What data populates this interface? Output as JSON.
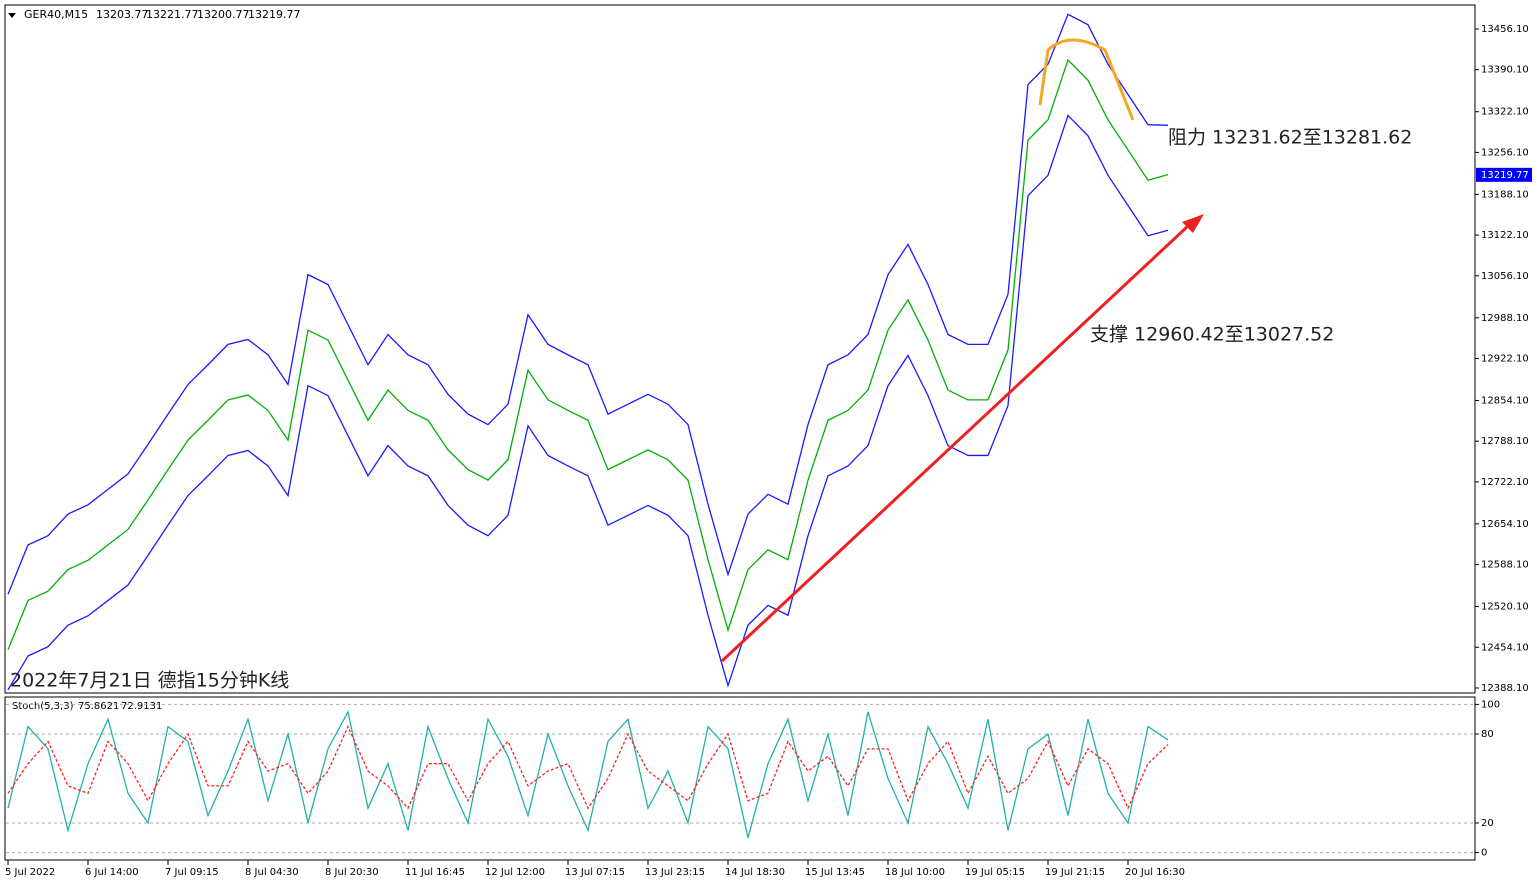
{
  "chart_data": [
    {
      "type": "line",
      "symbol": "GER40,M15",
      "ohlc": [
        13203.77,
        13221.77,
        13200.77,
        13219.77
      ],
      "price_marker": 13219.77,
      "annotations": [
        "阻力 13231.62至13281.62",
        "支撑 12960.42至13027.52",
        "2022年7月21日 德指15分钟K线"
      ],
      "categories": [
        "5 Jul 2022",
        null,
        null,
        null,
        "6 Jul 14:00",
        null,
        null,
        null,
        "7 Jul 09:15",
        null,
        null,
        null,
        "8 Jul 04:30",
        null,
        null,
        null,
        "8 Jul 20:30",
        null,
        null,
        null,
        "11 Jul 16:45",
        null,
        null,
        null,
        "12 Jul 12:00",
        null,
        null,
        null,
        "13 Jul 07:15",
        null,
        null,
        null,
        "13 Jul 23:15",
        null,
        null,
        null,
        "14 Jul 18:30",
        null,
        null,
        null,
        "15 Jul 13:45",
        null,
        null,
        null,
        "18 Jul 10:00",
        null,
        null,
        null,
        "19 Jul 05:15",
        null,
        null,
        null,
        "19 Jul 21:15",
        null,
        null,
        null,
        "20 Jul 16:30",
        null,
        null
      ],
      "series": [
        {
          "color": "#00b000",
          "values": [
            12450,
            12530,
            12545,
            12580,
            12595,
            12620,
            12645,
            12693,
            12742,
            12790,
            12822,
            12855,
            12863,
            12838,
            12790,
            12968,
            12952,
            12887,
            12822,
            12871,
            12838,
            12822,
            12774,
            12742,
            12725,
            12758,
            12903,
            12855,
            12838,
            12822,
            12742,
            12758,
            12774,
            12758,
            12725,
            12596,
            12482,
            12580,
            12612,
            12596,
            12725,
            12822,
            12838,
            12871,
            12968,
            13017,
            12952,
            12871,
            12855,
            12855,
            12936,
            13276,
            13309,
            13406,
            13373,
            13309,
            13260,
            13211,
            13220
          ]
        },
        {
          "color": "#1a1aff",
          "values": [
            12540,
            12620,
            12635,
            12670,
            12685,
            12710,
            12735,
            12783,
            12832,
            12880,
            12912,
            12945,
            12953,
            12928,
            12880,
            13058,
            13042,
            12977,
            12912,
            12961,
            12928,
            12912,
            12864,
            12832,
            12815,
            12848,
            12993,
            12945,
            12928,
            12912,
            12832,
            12848,
            12864,
            12848,
            12815,
            12686,
            12572,
            12670,
            12702,
            12686,
            12815,
            12912,
            12928,
            12961,
            13058,
            13107,
            13042,
            12961,
            12945,
            12945,
            13026,
            13366,
            13399,
            13480,
            13463,
            13399,
            13350,
            13301,
            13300
          ]
        },
        {
          "color": "#1a1aff",
          "values": [
            12385,
            12440,
            12455,
            12490,
            12505,
            12530,
            12555,
            12603,
            12652,
            12700,
            12732,
            12765,
            12773,
            12748,
            12700,
            12878,
            12862,
            12797,
            12732,
            12781,
            12748,
            12732,
            12684,
            12652,
            12635,
            12668,
            12813,
            12765,
            12748,
            12732,
            12652,
            12668,
            12684,
            12668,
            12635,
            12506,
            12392,
            12490,
            12522,
            12506,
            12635,
            12732,
            12748,
            12781,
            12878,
            12927,
            12862,
            12781,
            12765,
            12765,
            12846,
            13186,
            13219,
            13316,
            13283,
            13219,
            13170,
            13121,
            13130
          ]
        }
      ],
      "ylim": [
        12380,
        13495
      ],
      "yticks": [
        {
          "value": 13456.1,
          "label": "13456.10"
        },
        {
          "value": 13390.1,
          "label": "13390.10"
        },
        {
          "value": 13322.1,
          "label": "13322.10"
        },
        {
          "value": 13256.1,
          "label": "13256.10"
        },
        {
          "value": 13188.1,
          "label": "13188.10"
        },
        {
          "value": 13122.1,
          "label": "13122.10"
        },
        {
          "value": 13056.1,
          "label": "13056.10"
        },
        {
          "value": 12988.1,
          "label": "12988.10"
        },
        {
          "value": 12922.1,
          "label": "12922.10"
        },
        {
          "value": 12854.1,
          "label": "12854.10"
        },
        {
          "value": 12788.1,
          "label": "12788.10"
        },
        {
          "value": 12722.1,
          "label": "12722.10"
        },
        {
          "value": 12654.1,
          "label": "12654.10"
        },
        {
          "value": 12588.1,
          "label": "12588.10"
        },
        {
          "value": 12520.1,
          "label": "12520.10"
        },
        {
          "value": 12454.1,
          "label": "12454.10"
        },
        {
          "value": 12388.1,
          "label": "12388.10"
        }
      ]
    },
    {
      "type": "line",
      "indicator": "Stoch(5,3,3)",
      "indicator_values": [
        75.8621,
        72.9131
      ],
      "series": [
        {
          "color": "#20b2aa",
          "values": [
            30,
            85,
            70,
            15,
            60,
            90,
            40,
            20,
            85,
            75,
            25,
            55,
            90,
            35,
            80,
            20,
            70,
            95,
            30,
            60,
            15,
            85,
            50,
            20,
            90,
            65,
            25,
            80,
            45,
            15,
            75,
            90,
            30,
            55,
            20,
            85,
            70,
            10,
            60,
            90,
            35,
            80,
            25,
            95,
            50,
            20,
            85,
            60,
            30,
            90,
            15,
            70,
            80,
            25,
            90,
            40,
            20,
            85,
            76
          ]
        },
        {
          "color": "#ff2020",
          "dashed": true,
          "values": [
            40,
            60,
            75,
            45,
            40,
            75,
            60,
            35,
            60,
            80,
            45,
            45,
            75,
            55,
            60,
            40,
            55,
            85,
            55,
            45,
            30,
            60,
            60,
            35,
            60,
            75,
            45,
            55,
            60,
            30,
            50,
            80,
            55,
            45,
            35,
            60,
            80,
            35,
            40,
            75,
            55,
            65,
            45,
            70,
            70,
            35,
            60,
            75,
            40,
            65,
            40,
            50,
            75,
            45,
            70,
            60,
            30,
            60,
            73
          ]
        }
      ],
      "ylim": [
        -5,
        105
      ],
      "yticks": [
        0,
        20,
        80,
        100
      ],
      "grid": true
    }
  ]
}
